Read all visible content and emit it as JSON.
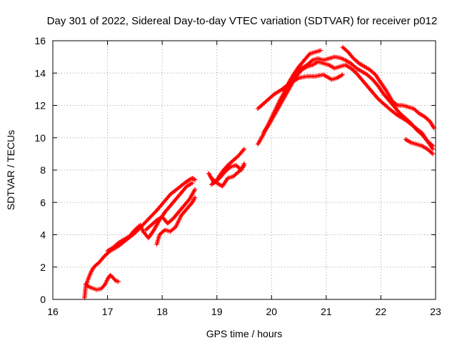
{
  "chart_data": {
    "type": "scatter",
    "title": "Day 301 of 2022, Sidereal Day-to-day VTEC variation (SDTVAR) for receiver p012",
    "xlabel": "GPS time / hours",
    "ylabel": "SDTVAR / TECUs",
    "xlim": [
      16,
      23
    ],
    "ylim": [
      0,
      16
    ],
    "xticks": [
      "16",
      "17",
      "18",
      "19",
      "20",
      "21",
      "22",
      "23"
    ],
    "yticks": [
      "0",
      "2",
      "4",
      "6",
      "8",
      "10",
      "12",
      "14",
      "16"
    ],
    "grid": true,
    "marker": "+",
    "color": "#ff0000",
    "series": [
      {
        "name": "track-1",
        "x": [
          16.58,
          16.6,
          16.65,
          16.7,
          16.75,
          16.85,
          16.95,
          17.05,
          17.2,
          17.35,
          17.5,
          17.7,
          17.9,
          18.05,
          18.15,
          18.3,
          18.45,
          18.55,
          18.6
        ],
        "y": [
          0.1,
          0.8,
          1.3,
          1.7,
          2.0,
          2.3,
          2.7,
          3.0,
          3.3,
          3.7,
          4.1,
          4.8,
          5.5,
          6.1,
          6.5,
          6.9,
          7.3,
          7.5,
          7.4
        ]
      },
      {
        "name": "track-2",
        "x": [
          16.6,
          16.65,
          16.72,
          16.8,
          16.88,
          16.95,
          17.0,
          17.05,
          17.1,
          17.15,
          17.2
        ],
        "y": [
          0.95,
          0.8,
          0.7,
          0.6,
          0.65,
          0.9,
          1.25,
          1.5,
          1.35,
          1.15,
          1.1
        ]
      },
      {
        "name": "track-3",
        "x": [
          17.0,
          17.1,
          17.2,
          17.3,
          17.4,
          17.5,
          17.6,
          17.65,
          17.75,
          17.85,
          17.95,
          18.05,
          18.15,
          18.25,
          18.35,
          18.45,
          18.55
        ],
        "y": [
          3.0,
          3.2,
          3.5,
          3.7,
          3.9,
          4.3,
          4.6,
          4.2,
          3.8,
          4.3,
          4.9,
          5.4,
          5.8,
          6.2,
          6.6,
          7.0,
          7.2
        ]
      },
      {
        "name": "track-4",
        "x": [
          17.7,
          17.8,
          17.9,
          18.0,
          18.1,
          18.2,
          18.3,
          18.4,
          18.5,
          18.6
        ],
        "y": [
          4.3,
          4.6,
          4.9,
          5.1,
          4.7,
          5.0,
          5.4,
          5.8,
          6.2,
          6.8
        ]
      },
      {
        "name": "track-5",
        "x": [
          17.9,
          17.95,
          18.05,
          18.15,
          18.25,
          18.35,
          18.45,
          18.55,
          18.6
        ],
        "y": [
          3.4,
          4.0,
          4.3,
          4.2,
          4.5,
          5.2,
          5.6,
          6.0,
          6.3
        ]
      },
      {
        "name": "track-6",
        "x": [
          18.9,
          19.0,
          19.1,
          19.2,
          19.3,
          19.4,
          19.5
        ],
        "y": [
          7.1,
          7.4,
          7.9,
          8.3,
          8.6,
          8.9,
          9.3
        ]
      },
      {
        "name": "track-7",
        "x": [
          18.85,
          18.95,
          19.05,
          19.15,
          19.25,
          19.35,
          19.45,
          19.5
        ],
        "y": [
          7.8,
          7.2,
          7.5,
          7.9,
          8.2,
          8.3,
          8.0,
          8.4
        ]
      },
      {
        "name": "track-8",
        "x": [
          18.9,
          19.0,
          19.1,
          19.2,
          19.3,
          19.4,
          19.5
        ],
        "y": [
          7.5,
          7.2,
          7.0,
          7.5,
          7.6,
          7.9,
          8.3
        ]
      },
      {
        "name": "track-9",
        "x": [
          19.75,
          19.85,
          19.95,
          20.05,
          20.15,
          20.25,
          20.35,
          20.5,
          20.65,
          20.8,
          20.95,
          21.1,
          21.2,
          21.3
        ],
        "y": [
          11.8,
          12.1,
          12.4,
          12.7,
          12.9,
          13.1,
          13.4,
          13.7,
          13.8,
          13.8,
          13.9,
          13.6,
          13.7,
          13.9
        ]
      },
      {
        "name": "track-10",
        "x": [
          19.75,
          19.85,
          19.95,
          20.05,
          20.15,
          20.25,
          20.35,
          20.45,
          20.55,
          20.65,
          20.75,
          20.85,
          20.95,
          21.05,
          21.15,
          21.25,
          21.35,
          21.45,
          21.55,
          21.65,
          21.75,
          21.85,
          21.95,
          22.05,
          22.15,
          22.25,
          22.35,
          22.45,
          22.55,
          22.65,
          22.75,
          22.85,
          22.95
        ],
        "y": [
          9.6,
          10.2,
          10.9,
          11.6,
          12.3,
          12.9,
          13.6,
          14.1,
          14.3,
          14.5,
          14.8,
          14.9,
          14.8,
          14.9,
          15.0,
          14.95,
          14.8,
          14.6,
          14.3,
          14.1,
          13.9,
          13.6,
          13.2,
          12.7,
          12.3,
          11.9,
          11.5,
          11.2,
          10.9,
          10.5,
          10.2,
          9.8,
          9.5
        ]
      },
      {
        "name": "track-11",
        "x": [
          19.85,
          19.95,
          20.05,
          20.15,
          20.25,
          20.35,
          20.45,
          20.55,
          20.65,
          20.75,
          20.85,
          20.95,
          21.05,
          21.15,
          21.25,
          21.35,
          21.45,
          21.55,
          21.65,
          21.75,
          21.85,
          21.95,
          22.05,
          22.15,
          22.3,
          22.45,
          22.6,
          22.75,
          22.85,
          22.95
        ],
        "y": [
          10.3,
          10.8,
          11.4,
          12.0,
          12.6,
          13.2,
          13.8,
          14.2,
          14.4,
          14.5,
          14.7,
          14.6,
          14.5,
          14.3,
          14.4,
          14.5,
          14.3,
          14.0,
          13.6,
          13.2,
          12.8,
          12.4,
          12.1,
          11.8,
          11.4,
          11.1,
          10.7,
          10.3,
          9.8,
          9.3
        ]
      },
      {
        "name": "track-12",
        "x": [
          20.2,
          20.3,
          20.4,
          20.5,
          20.6,
          20.7,
          20.8,
          20.9
        ],
        "y": [
          13.0,
          13.3,
          13.9,
          14.4,
          14.8,
          15.2,
          15.3,
          15.4
        ]
      },
      {
        "name": "track-13",
        "x": [
          21.3,
          21.4,
          21.5,
          21.6,
          21.7,
          21.8,
          21.9,
          22.0,
          22.1,
          22.2,
          22.3,
          22.4,
          22.5,
          22.6,
          22.7,
          22.8,
          22.9,
          22.97
        ],
        "y": [
          15.6,
          15.3,
          14.9,
          14.6,
          14.4,
          14.2,
          13.9,
          13.4,
          12.9,
          12.3,
          12.0,
          12.0,
          11.9,
          11.8,
          11.5,
          11.3,
          11.0,
          10.6
        ]
      },
      {
        "name": "track-14",
        "x": [
          22.45,
          22.55,
          22.65,
          22.75,
          22.85,
          22.95
        ],
        "y": [
          9.9,
          9.7,
          9.6,
          9.5,
          9.3,
          9.0
        ]
      }
    ]
  }
}
